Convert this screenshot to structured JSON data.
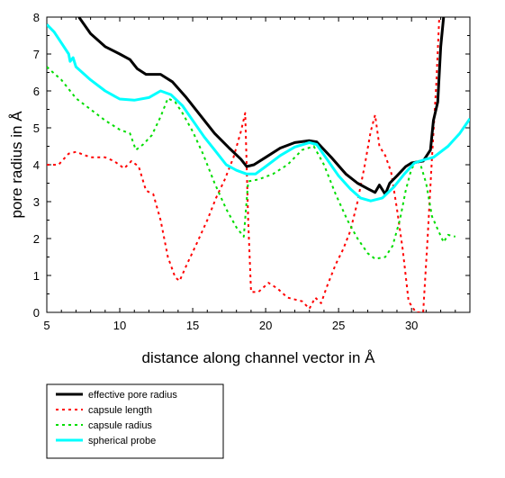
{
  "chart_data": {
    "type": "line",
    "xlabel": "distance along channel vector in Å",
    "ylabel": "pore radius in Å",
    "xlim": [
      5,
      34
    ],
    "ylim": [
      0,
      8
    ],
    "xticks": [
      5,
      10,
      15,
      20,
      25,
      30
    ],
    "yticks": [
      0,
      1,
      2,
      3,
      4,
      5,
      6,
      7,
      8
    ],
    "grid": false,
    "legend_position": "bottom-left, below the plot",
    "series": [
      {
        "name": "effective pore radius",
        "color": "#000000",
        "dash": "solid",
        "points": [
          [
            7.2,
            8.0
          ],
          [
            8.0,
            7.55
          ],
          [
            9.0,
            7.2
          ],
          [
            10.0,
            7.0
          ],
          [
            10.7,
            6.85
          ],
          [
            11.2,
            6.6
          ],
          [
            11.8,
            6.45
          ],
          [
            12.8,
            6.45
          ],
          [
            13.6,
            6.25
          ],
          [
            14.5,
            5.85
          ],
          [
            15.5,
            5.35
          ],
          [
            16.5,
            4.85
          ],
          [
            17.5,
            4.45
          ],
          [
            18.3,
            4.15
          ],
          [
            18.7,
            3.95
          ],
          [
            19.2,
            4.0
          ],
          [
            20.0,
            4.2
          ],
          [
            21.0,
            4.45
          ],
          [
            22.0,
            4.6
          ],
          [
            23.0,
            4.65
          ],
          [
            23.5,
            4.62
          ],
          [
            24.5,
            4.2
          ],
          [
            25.5,
            3.75
          ],
          [
            26.3,
            3.5
          ],
          [
            27.0,
            3.35
          ],
          [
            27.5,
            3.25
          ],
          [
            27.8,
            3.45
          ],
          [
            28.2,
            3.2
          ],
          [
            28.5,
            3.5
          ],
          [
            29.0,
            3.7
          ],
          [
            29.6,
            3.95
          ],
          [
            30.0,
            4.05
          ],
          [
            30.8,
            4.1
          ],
          [
            31.3,
            4.4
          ],
          [
            31.5,
            5.2
          ],
          [
            31.8,
            5.7
          ],
          [
            32.0,
            7.2
          ],
          [
            32.2,
            8.0
          ]
        ]
      },
      {
        "name": "capsule length",
        "color": "#ff0000",
        "dash": "dotted",
        "points": [
          [
            5.0,
            4.0
          ],
          [
            5.8,
            4.0
          ],
          [
            6.5,
            4.3
          ],
          [
            7.0,
            4.35
          ],
          [
            8.0,
            4.2
          ],
          [
            9.0,
            4.2
          ],
          [
            9.6,
            4.1
          ],
          [
            10.3,
            3.9
          ],
          [
            10.8,
            4.1
          ],
          [
            11.3,
            3.95
          ],
          [
            11.8,
            3.3
          ],
          [
            12.3,
            3.2
          ],
          [
            12.8,
            2.5
          ],
          [
            13.3,
            1.5
          ],
          [
            13.8,
            0.95
          ],
          [
            14.1,
            0.85
          ],
          [
            14.6,
            1.3
          ],
          [
            15.2,
            1.8
          ],
          [
            16.0,
            2.5
          ],
          [
            16.6,
            3.1
          ],
          [
            17.2,
            3.6
          ],
          [
            17.8,
            4.2
          ],
          [
            18.3,
            4.9
          ],
          [
            18.6,
            5.4
          ],
          [
            18.8,
            2.5
          ],
          [
            19.0,
            0.55
          ],
          [
            19.5,
            0.55
          ],
          [
            20.2,
            0.8
          ],
          [
            20.8,
            0.65
          ],
          [
            21.5,
            0.4
          ],
          [
            22.5,
            0.3
          ],
          [
            23.0,
            0.1
          ],
          [
            23.4,
            0.4
          ],
          [
            23.8,
            0.25
          ],
          [
            24.2,
            0.7
          ],
          [
            24.8,
            1.3
          ],
          [
            25.3,
            1.7
          ],
          [
            25.8,
            2.2
          ],
          [
            26.3,
            3.0
          ],
          [
            26.8,
            4.0
          ],
          [
            27.2,
            4.9
          ],
          [
            27.5,
            5.35
          ],
          [
            27.8,
            4.5
          ],
          [
            28.2,
            4.25
          ],
          [
            28.6,
            3.8
          ],
          [
            29.0,
            2.8
          ],
          [
            29.4,
            1.7
          ],
          [
            29.8,
            0.3
          ],
          [
            30.3,
            0.0
          ],
          [
            30.8,
            0.0
          ],
          [
            31.1,
            2.0
          ],
          [
            31.4,
            4.2
          ],
          [
            31.7,
            6.2
          ],
          [
            31.9,
            8.0
          ]
        ]
      },
      {
        "name": "capsule radius",
        "color": "#00dd00",
        "dash": "dotted",
        "points": [
          [
            5.0,
            6.65
          ],
          [
            6.0,
            6.3
          ],
          [
            7.0,
            5.8
          ],
          [
            8.0,
            5.5
          ],
          [
            9.0,
            5.2
          ],
          [
            10.0,
            4.95
          ],
          [
            10.7,
            4.85
          ],
          [
            11.1,
            4.4
          ],
          [
            11.6,
            4.55
          ],
          [
            12.2,
            4.8
          ],
          [
            12.8,
            5.3
          ],
          [
            13.3,
            5.8
          ],
          [
            13.8,
            5.7
          ],
          [
            14.3,
            5.4
          ],
          [
            15.0,
            4.9
          ],
          [
            15.7,
            4.3
          ],
          [
            16.5,
            3.5
          ],
          [
            17.3,
            2.8
          ],
          [
            18.0,
            2.3
          ],
          [
            18.5,
            2.05
          ],
          [
            18.8,
            3.55
          ],
          [
            19.5,
            3.6
          ],
          [
            20.5,
            3.75
          ],
          [
            21.5,
            4.0
          ],
          [
            22.5,
            4.4
          ],
          [
            23.3,
            4.5
          ],
          [
            24.0,
            4.0
          ],
          [
            24.8,
            3.2
          ],
          [
            25.6,
            2.5
          ],
          [
            26.3,
            2.0
          ],
          [
            27.0,
            1.6
          ],
          [
            27.5,
            1.45
          ],
          [
            28.2,
            1.5
          ],
          [
            28.7,
            1.8
          ],
          [
            29.2,
            2.5
          ],
          [
            29.6,
            3.3
          ],
          [
            30.0,
            3.9
          ],
          [
            30.5,
            4.15
          ],
          [
            31.0,
            3.5
          ],
          [
            31.4,
            2.6
          ],
          [
            31.8,
            2.25
          ],
          [
            32.2,
            1.9
          ],
          [
            32.5,
            2.1
          ],
          [
            33.0,
            2.05
          ]
        ]
      },
      {
        "name": "spherical probe",
        "color": "#00ffff",
        "dash": "solid",
        "points": [
          [
            5.0,
            7.8
          ],
          [
            5.5,
            7.6
          ],
          [
            6.0,
            7.3
          ],
          [
            6.5,
            7.0
          ],
          [
            6.6,
            6.8
          ],
          [
            6.8,
            6.9
          ],
          [
            7.0,
            6.65
          ],
          [
            8.0,
            6.3
          ],
          [
            9.0,
            6.0
          ],
          [
            10.0,
            5.78
          ],
          [
            11.0,
            5.75
          ],
          [
            12.0,
            5.82
          ],
          [
            12.8,
            6.0
          ],
          [
            13.5,
            5.9
          ],
          [
            14.3,
            5.6
          ],
          [
            15.0,
            5.2
          ],
          [
            15.8,
            4.75
          ],
          [
            16.5,
            4.4
          ],
          [
            17.3,
            4.0
          ],
          [
            18.0,
            3.85
          ],
          [
            18.7,
            3.75
          ],
          [
            19.3,
            3.75
          ],
          [
            20.0,
            3.95
          ],
          [
            21.0,
            4.25
          ],
          [
            22.0,
            4.48
          ],
          [
            23.0,
            4.6
          ],
          [
            23.5,
            4.55
          ],
          [
            24.2,
            4.15
          ],
          [
            25.0,
            3.7
          ],
          [
            25.8,
            3.35
          ],
          [
            26.5,
            3.1
          ],
          [
            27.2,
            3.02
          ],
          [
            28.0,
            3.1
          ],
          [
            28.8,
            3.4
          ],
          [
            29.5,
            3.75
          ],
          [
            30.2,
            4.05
          ],
          [
            31.0,
            4.15
          ],
          [
            31.5,
            4.2
          ],
          [
            32.5,
            4.5
          ],
          [
            33.3,
            4.85
          ],
          [
            34.0,
            5.25
          ]
        ]
      }
    ]
  }
}
